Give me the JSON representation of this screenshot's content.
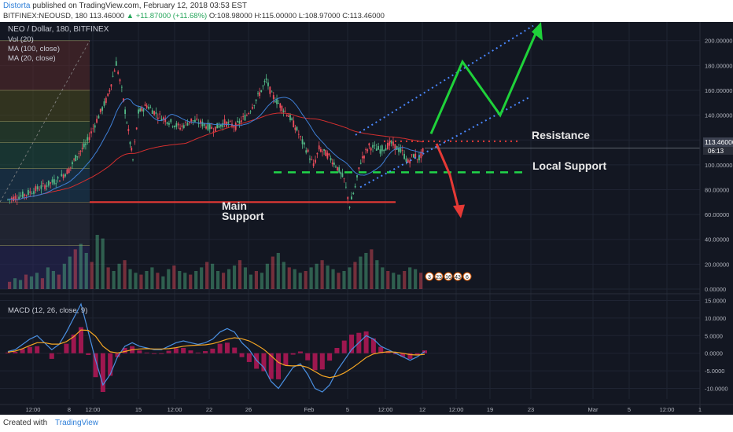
{
  "header": {
    "author": "Distorta",
    "published_text": "published on TradingView.com, February 12, 2018 03:53 EST",
    "symbol_line_prefix": "BITFINEX:NEOUSD, 180 113.46000",
    "change_text": "▲ +11.87000 (+11.68%)",
    "ohlc_text": "O:108.98000 H:115.00000 L:108.97000 C:113.46000"
  },
  "footer": {
    "created_with": "Created with",
    "brand": "TradingView"
  },
  "colors": {
    "background": "#131722",
    "grid": "#1f2433",
    "bull": "#53b987",
    "bear": "#eb4d5c",
    "ma100": "#d32f2f",
    "ma20": "#3f7fd6",
    "macd": "#4a90e2",
    "signal": "#f5a623",
    "hist": "#c2185b",
    "resistance": "#e53935",
    "support_green": "#21d44a",
    "main_support": "#e53935",
    "channel": "#4a88ff",
    "arrow_green": "#1fd23a",
    "arrow_red": "#e53935"
  },
  "chart_data": {
    "type": "candlestick",
    "title": "NEO / Dollar, 180, BITFINEX",
    "indicators": {
      "volume": "Vol (20)",
      "ma100": "MA (100, close)",
      "ma20": "MA (20, close)",
      "macd": "MACD (12, 26, close, 9)"
    },
    "price_axis": {
      "ticks": [
        "200.00000",
        "180.00000",
        "160.00000",
        "140.00000",
        "120.00000",
        "100.00000",
        "80.00000",
        "60.00000",
        "40.00000",
        "20.00000",
        "0.00000"
      ],
      "range": [
        0,
        215
      ]
    },
    "current_price_label": "113.46000",
    "countdown_label": "06:13",
    "macd_axis": {
      "ticks": [
        "15.0000",
        "10.0000",
        "5.0000",
        "0.0000",
        "-5.0000",
        "-10.0000"
      ],
      "range": [
        -13,
        16
      ]
    },
    "time_axis_ticks": [
      "12:00",
      "8",
      "12:00",
      "15",
      "12:00",
      "22",
      "26",
      "Feb",
      "5",
      "12:00",
      "12",
      "12:00",
      "19",
      "23",
      "Mar",
      "5",
      "12:00",
      "1"
    ],
    "price_path": [
      [
        0,
        72
      ],
      [
        3,
        76
      ],
      [
        6,
        82
      ],
      [
        9,
        88
      ],
      [
        11,
        96
      ],
      [
        12.5,
        108
      ],
      [
        14,
        116
      ],
      [
        16,
        136
      ],
      [
        18,
        155
      ],
      [
        19.5,
        182
      ],
      [
        20.5,
        160
      ],
      [
        22,
        118
      ],
      [
        22.5,
        104
      ],
      [
        23.5,
        142
      ],
      [
        25,
        148
      ],
      [
        27,
        140
      ],
      [
        29,
        135
      ],
      [
        31,
        130
      ],
      [
        33,
        136
      ],
      [
        35,
        133
      ],
      [
        37,
        129
      ],
      [
        39,
        134
      ],
      [
        41,
        131
      ],
      [
        43,
        140
      ],
      [
        45,
        155
      ],
      [
        46.5,
        168
      ],
      [
        47.5,
        156
      ],
      [
        49,
        148
      ],
      [
        50.5,
        140
      ],
      [
        52,
        128
      ],
      [
        53,
        118
      ],
      [
        54,
        110
      ],
      [
        55,
        99
      ],
      [
        56,
        113
      ],
      [
        57.5,
        108
      ],
      [
        59,
        100
      ],
      [
        60.5,
        88
      ],
      [
        61.5,
        67
      ],
      [
        62.5,
        82
      ],
      [
        63.5,
        103
      ],
      [
        65,
        115
      ],
      [
        67,
        112
      ],
      [
        69,
        117
      ],
      [
        71,
        110
      ],
      [
        72,
        102
      ],
      [
        73,
        108
      ],
      [
        74,
        105
      ],
      [
        75,
        113.46
      ]
    ],
    "volume_profile": [
      4,
      6,
      5,
      8,
      7,
      9,
      6,
      12,
      10,
      8,
      14,
      18,
      22,
      25,
      20,
      15,
      30,
      28,
      12,
      10,
      14,
      16,
      11,
      9,
      8,
      10,
      12,
      9,
      7,
      11,
      13,
      10,
      9,
      8,
      10,
      12,
      15,
      14,
      10,
      9,
      11,
      13,
      16,
      12,
      8,
      10,
      9,
      14,
      18,
      20,
      15,
      12,
      11,
      9,
      10,
      12,
      14,
      16,
      13,
      11,
      9,
      10,
      12,
      15,
      18,
      20,
      22,
      16,
      12,
      10,
      9,
      8,
      10,
      12,
      11,
      9
    ],
    "macd_line": [
      0.5,
      1,
      2.5,
      4,
      5,
      3,
      1,
      2.5,
      6,
      10,
      14,
      6,
      -2,
      -9,
      -6,
      -1,
      2,
      3,
      2,
      1.5,
      1,
      1,
      2,
      3,
      3.5,
      3,
      2.5,
      3,
      4,
      6,
      7,
      6,
      3,
      1,
      -2,
      -4,
      -8,
      -10,
      -7,
      -4,
      -3,
      -6,
      -10,
      -11,
      -9,
      -5,
      -2,
      1,
      3,
      5,
      4,
      2,
      1,
      0,
      -1,
      -2,
      -1,
      0.5
    ],
    "signal_line": [
      0.3,
      0.6,
      1.3,
      2.2,
      3,
      3,
      2.6,
      2.6,
      3.3,
      4.7,
      6.6,
      6.5,
      4.8,
      2,
      0.4,
      0.1,
      0.5,
      1,
      1.2,
      1.3,
      1.2,
      1.2,
      1.3,
      1.6,
      2,
      2.2,
      2.3,
      2.4,
      2.7,
      3.3,
      4,
      4.4,
      4.1,
      3.5,
      2.4,
      1.1,
      -0.7,
      -2.6,
      -3.5,
      -3.6,
      -3.5,
      -4,
      -5.2,
      -6.4,
      -6.9,
      -6.5,
      -5.6,
      -4.3,
      -2.8,
      -1.2,
      -0.2,
      0.2,
      0.4,
      0.3,
      0,
      -0.4,
      -0.5,
      -0.3
    ],
    "annotations": {
      "resistance": {
        "label": "Resistance",
        "price": 119
      },
      "local_support": {
        "label": "Local Support",
        "price": 94
      },
      "main_support": {
        "label_line1": "Main",
        "label_line2": "Support",
        "price": 70
      }
    },
    "trade_marks": [
      "3",
      "23",
      "16",
      "43",
      "6"
    ]
  }
}
